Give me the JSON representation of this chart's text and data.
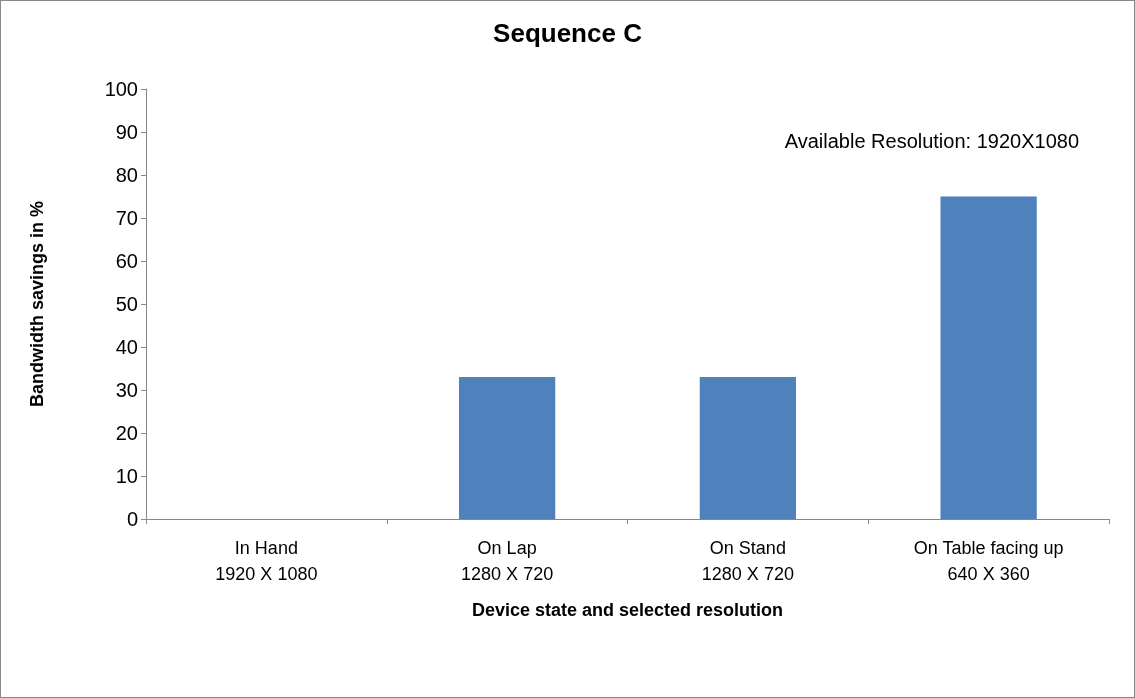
{
  "chart_data": {
    "type": "bar",
    "title": "Sequence C",
    "xlabel": "Device state and selected resolution",
    "ylabel": "Bandwidth savings in %",
    "categories": [
      "In Hand\n1920 X 1080",
      "On Lap\n1280 X 720",
      "On Stand\n1280 X 720",
      "On Table facing up\n640 X 360"
    ],
    "values": [
      0,
      33,
      33,
      75
    ],
    "color": "#4f81bd",
    "ylim": [
      0,
      100
    ],
    "yticks": [
      0,
      10,
      20,
      30,
      40,
      50,
      60,
      70,
      80,
      90,
      100
    ],
    "annotations": [
      "Available Resolution: 1920X1080"
    ]
  }
}
